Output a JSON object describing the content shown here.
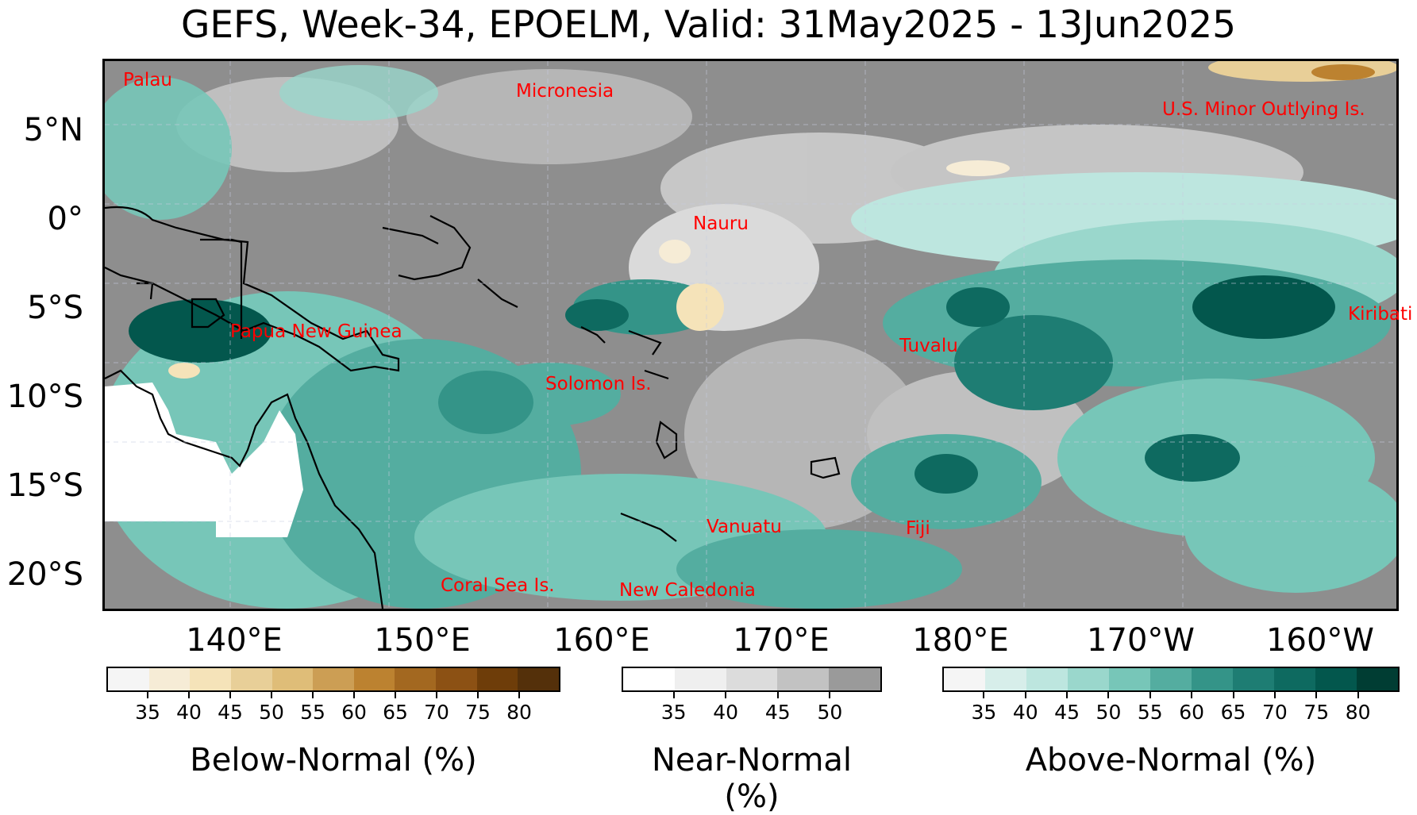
{
  "title": "GEFS, Week-34, EPOELM, Valid: 31May2025 - 13Jun2025",
  "lat_labels": [
    "5°N",
    "0°",
    "5°S",
    "10°S",
    "15°S",
    "20°S"
  ],
  "lon_labels": [
    "140°E",
    "150°E",
    "160°E",
    "170°E",
    "180°E",
    "170°W",
    "160°W"
  ],
  "places": [
    "Palau",
    "Micronesia",
    "U.S. Minor Outlying Is.",
    "Nauru",
    "Papua New Guinea",
    "Kiribati",
    "Tuvalu",
    "Solomon Is.",
    "Vanuatu",
    "Fiji",
    "Coral Sea Is.",
    "New Caledonia"
  ],
  "colorbars": {
    "below": {
      "label": "Below-Normal (%)",
      "ticks": [
        "35",
        "40",
        "45",
        "50",
        "55",
        "60",
        "65",
        "70",
        "75",
        "80"
      ],
      "colors": [
        "#f5f5f5",
        "#f6ecd6",
        "#f5e3b9",
        "#e8cf98",
        "#dfbd78",
        "#cc9e54",
        "#bc8230",
        "#a36820",
        "#8c5114",
        "#6e3d09",
        "#54300a"
      ]
    },
    "near": {
      "label": "Near-Normal (%)",
      "ticks": [
        "35",
        "40",
        "45",
        "50"
      ],
      "colors": [
        "#ffffff",
        "#efefef",
        "#dcdcdc",
        "#c2c2c2",
        "#9a9a9a"
      ]
    },
    "above": {
      "label": "Above-Normal (%)",
      "ticks": [
        "35",
        "40",
        "45",
        "50",
        "55",
        "60",
        "65",
        "70",
        "75",
        "80"
      ],
      "colors": [
        "#f5f5f5",
        "#d7eeea",
        "#bde6df",
        "#9ad7cc",
        "#77c6b8",
        "#54ada0",
        "#349488",
        "#1e7d73",
        "#0e6a60",
        "#03574d",
        "#003d33"
      ]
    }
  }
}
